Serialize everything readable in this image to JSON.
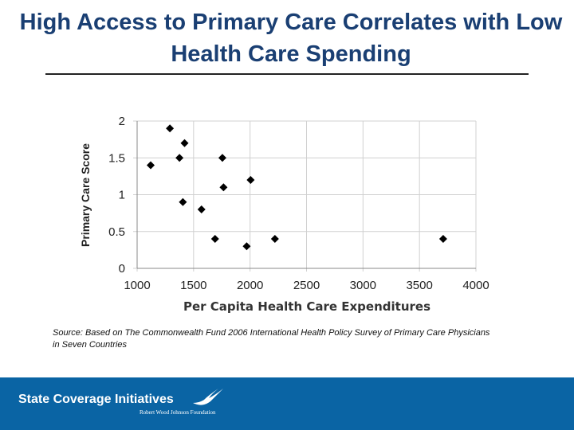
{
  "title": "High Access to Primary Care Correlates with Low Health Care Spending",
  "chart_data": {
    "type": "scatter",
    "xlabel": "Per Capita Health Care Expenditures",
    "ylabel": "Primary Care Score",
    "xlim": [
      1000,
      4000
    ],
    "ylim": [
      0,
      2
    ],
    "xticks": [
      1000,
      1500,
      2000,
      2500,
      3000,
      3500,
      4000
    ],
    "yticks": [
      0,
      0.5,
      1,
      1.5,
      2
    ],
    "grid": true,
    "marker_color": "#000000",
    "points": [
      [
        1120,
        1.4
      ],
      [
        1290,
        1.9
      ],
      [
        1420,
        1.7
      ],
      [
        1375,
        1.5
      ],
      [
        1405,
        0.9
      ],
      [
        1570,
        0.8
      ],
      [
        1690,
        0.4
      ],
      [
        1755,
        1.5
      ],
      [
        1765,
        1.1
      ],
      [
        2005,
        1.2
      ],
      [
        1970,
        0.3
      ],
      [
        2220,
        0.4
      ],
      [
        3710,
        0.4
      ]
    ]
  },
  "source": "Source: Based on The Commonwealth Fund 2006 International Health Policy Survey of Primary Care Physicians in Seven Countries",
  "footer": {
    "brand": "State Coverage Initiatives",
    "sub": "Robert Wood Johnson Foundation",
    "color": "#0a64a4"
  }
}
